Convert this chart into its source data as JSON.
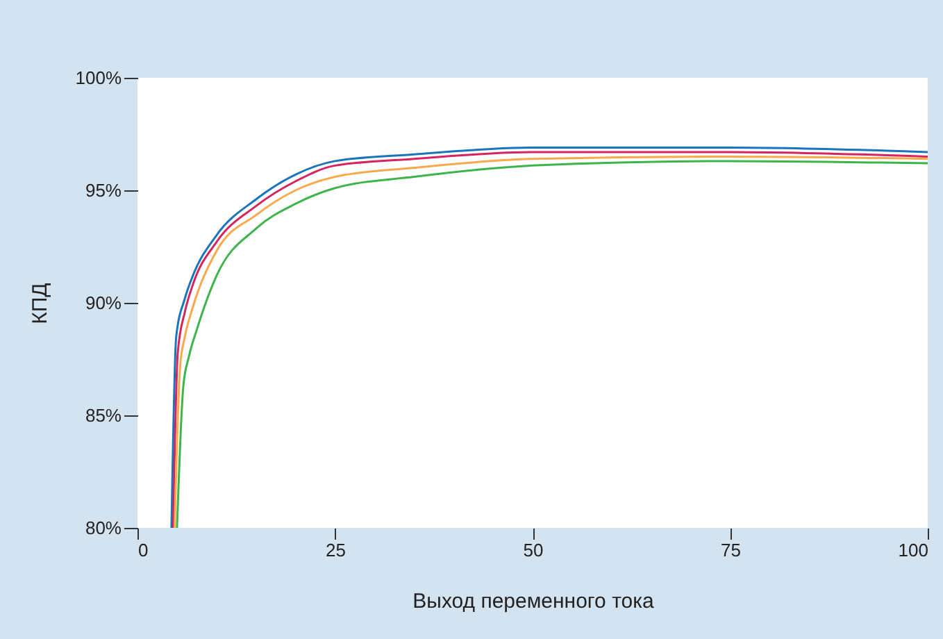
{
  "chart_data": {
    "type": "line",
    "xlabel": "Выход переменного тока",
    "ylabel": "КПД",
    "series": [
      {
        "color": "#1a75bc",
        "x": [
          4.3,
          4.9,
          6,
          7,
          10,
          15,
          20,
          25,
          35,
          50,
          75,
          100
        ],
        "values": [
          80,
          88.5,
          90.2,
          91.2,
          93.0,
          94.6,
          95.7,
          96.3,
          96.6,
          96.9,
          96.9,
          96.7
        ]
      },
      {
        "color": "#d6245c",
        "x": [
          4.5,
          5.1,
          6,
          7,
          10,
          15,
          20,
          25,
          35,
          50,
          75,
          100
        ],
        "values": [
          80,
          87.8,
          89.6,
          90.8,
          92.7,
          94.3,
          95.4,
          96.1,
          96.4,
          96.7,
          96.7,
          96.5
        ]
      },
      {
        "color": "#f9a94b",
        "x": [
          4.7,
          5.4,
          6,
          7,
          10,
          15,
          20,
          25,
          35,
          50,
          75,
          100
        ],
        "values": [
          80,
          87.2,
          88.5,
          89.8,
          92.3,
          93.9,
          95.0,
          95.6,
          96.0,
          96.4,
          96.5,
          96.4
        ]
      },
      {
        "color": "#3db54a",
        "x": [
          5.0,
          5.8,
          6.5,
          7.5,
          10,
          15,
          20,
          25,
          35,
          50,
          75,
          100
        ],
        "values": [
          80,
          86.3,
          87.6,
          88.8,
          91.2,
          93.3,
          94.4,
          95.1,
          95.6,
          96.1,
          96.3,
          96.2
        ]
      }
    ],
    "xlim": [
      0,
      100
    ],
    "xticks": [
      0,
      25,
      50,
      75,
      100
    ],
    "ylim": [
      80,
      100
    ],
    "yticks": [
      {
        "value": 80,
        "label": "80%"
      },
      {
        "value": 85,
        "label": "85%"
      },
      {
        "value": 90,
        "label": "90%"
      },
      {
        "value": 95,
        "label": "95%"
      },
      {
        "value": 100,
        "label": "100%"
      }
    ],
    "grid": false,
    "legend": false,
    "marker": "none",
    "line_style": "solid"
  }
}
